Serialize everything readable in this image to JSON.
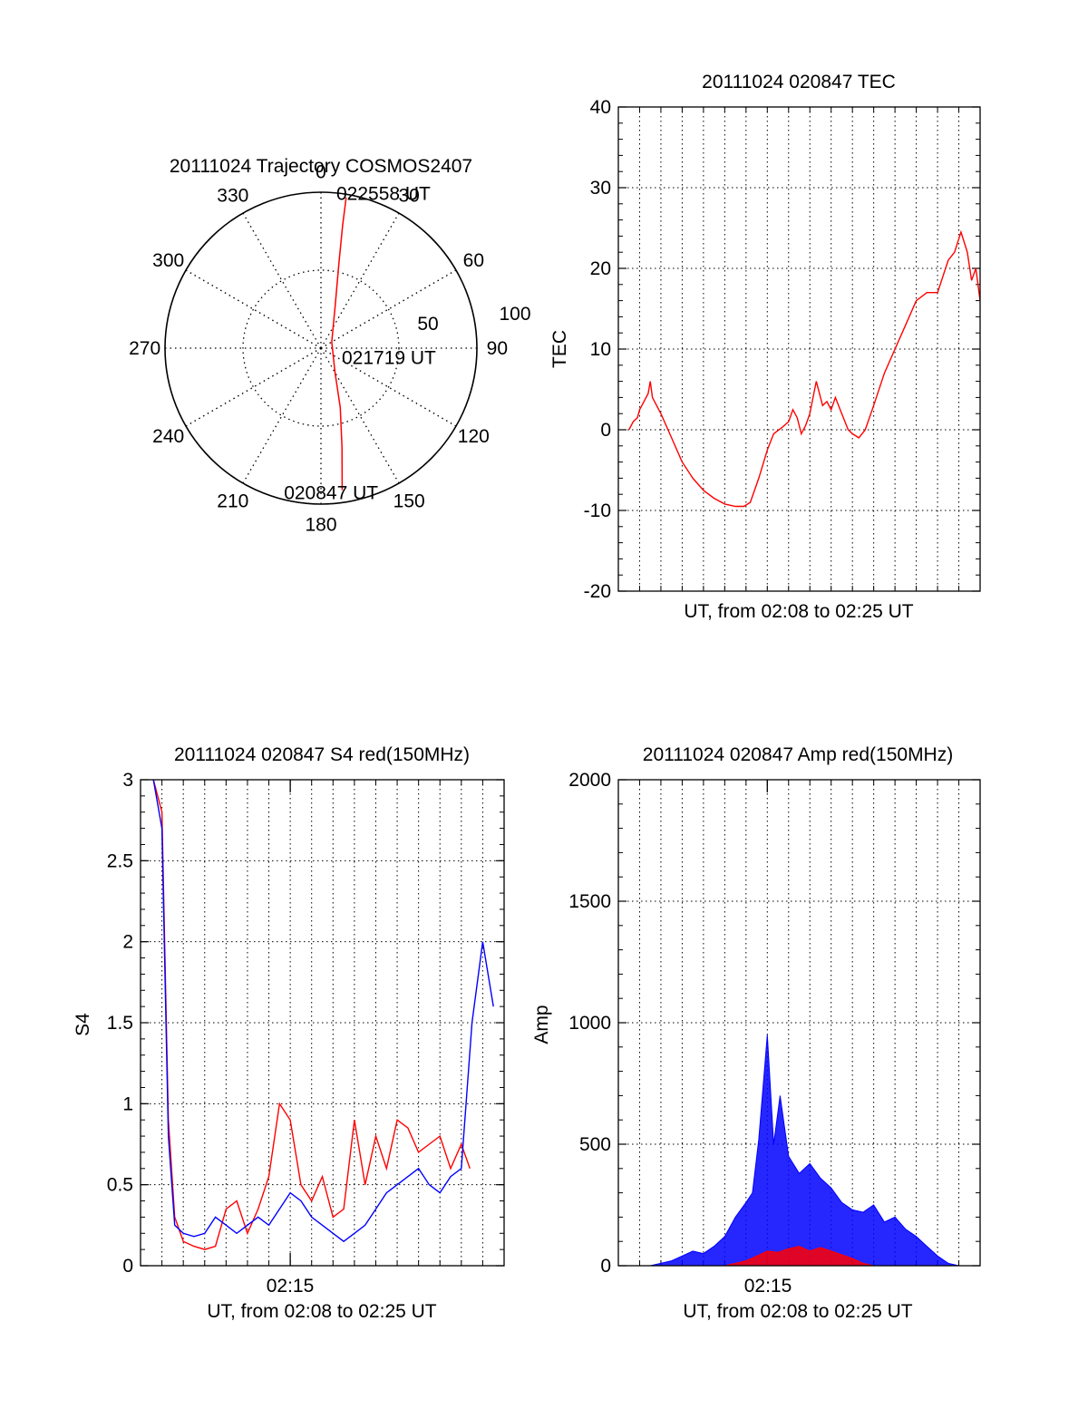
{
  "colors": {
    "red": "#ff0000",
    "blue": "#0000ff",
    "axis": "#000000",
    "grid": "#000000"
  },
  "chart_data": [
    {
      "id": "trajectory",
      "type": "polar",
      "title": "20111024 Trajectory COSMOS2407",
      "angle_labels": [
        "0",
        "30",
        "60",
        "90",
        "120",
        "150",
        "180",
        "210",
        "240",
        "270",
        "300",
        "330"
      ],
      "radius_labels": [
        "50",
        "100"
      ],
      "rlim": [
        0,
        100
      ],
      "grid": true,
      "track": {
        "series": "red",
        "points": [
          {
            "az": 9.5,
            "r": 98
          },
          {
            "az": 10,
            "r": 80
          },
          {
            "az": 12,
            "r": 55
          },
          {
            "az": 18,
            "r": 30
          },
          {
            "az": 60,
            "r": 8
          },
          {
            "az": 150,
            "r": 18
          },
          {
            "az": 162,
            "r": 40
          },
          {
            "az": 168,
            "r": 65
          },
          {
            "az": 171.5,
            "r": 92
          }
        ]
      },
      "annotations": [
        {
          "text": "022558 UT",
          "az": 22,
          "r": 107
        },
        {
          "text": "021719 UT",
          "az": 98,
          "r": 44
        },
        {
          "text": "020847 UT",
          "az": 176,
          "r": 93
        }
      ]
    },
    {
      "id": "tec",
      "type": "line",
      "title": "20111024 020847 TEC",
      "xlabel": "UT, from 02:08 to 02:25 UT",
      "ylabel": "TEC",
      "xlim": [
        0,
        17
      ],
      "ylim": [
        -20,
        40
      ],
      "yticks": [
        "-20",
        "-10",
        "0",
        "10",
        "20",
        "30",
        "40"
      ],
      "grid": true,
      "series": [
        {
          "color": "red",
          "x": [
            0.5,
            0.7,
            0.9,
            1.0,
            1.2,
            1.4,
            1.5,
            1.6,
            2.0,
            2.5,
            3.0,
            3.5,
            4.0,
            4.5,
            5.0,
            5.5,
            5.9,
            6.2,
            6.6,
            7.0,
            7.3,
            7.7,
            8.0,
            8.2,
            8.4,
            8.6,
            8.8,
            9.0,
            9.3,
            9.6,
            9.8,
            10.0,
            10.2,
            10.5,
            10.8,
            11.0,
            11.3,
            11.6,
            12.0,
            12.5,
            13.0,
            13.5,
            14.0,
            14.5,
            15.0,
            15.5,
            15.8,
            16.1,
            16.4,
            16.6,
            16.8,
            17.0
          ],
          "y": [
            0.0,
            1.0,
            1.5,
            2.5,
            3.5,
            4.5,
            6.0,
            4.0,
            2.0,
            -1.0,
            -4.0,
            -6.0,
            -7.5,
            -8.5,
            -9.2,
            -9.5,
            -9.5,
            -9.0,
            -6.0,
            -2.5,
            -0.5,
            0.3,
            1.0,
            2.5,
            1.5,
            -0.5,
            0.5,
            2.0,
            6.0,
            3.0,
            3.5,
            2.5,
            4.0,
            2.0,
            0.0,
            -0.5,
            -1.0,
            0.0,
            3.0,
            7.0,
            10.0,
            13.0,
            16.0,
            17.0,
            17.0,
            21.0,
            22.0,
            24.5,
            22.0,
            18.5,
            20.0,
            16.0
          ]
        }
      ]
    },
    {
      "id": "s4",
      "type": "line",
      "title": "20111024 020847 S4 red(150MHz)",
      "xlabel": "UT, from 02:08 to 02:25 UT",
      "ylabel": "S4",
      "xtick_label": "02:15",
      "xlim": [
        0,
        17
      ],
      "ylim": [
        0,
        3
      ],
      "yticks": [
        "0",
        "0.5",
        "1",
        "1.5",
        "2",
        "2.5",
        "3"
      ],
      "grid": true,
      "series": [
        {
          "color": "red",
          "x": [
            0.6,
            1.0,
            1.3,
            1.6,
            2.0,
            2.5,
            3.0,
            3.5,
            4.0,
            4.5,
            5.0,
            5.5,
            6.0,
            6.5,
            7.0,
            7.5,
            8.0,
            8.5,
            9.0,
            9.5,
            10.0,
            10.5,
            11.0,
            11.5,
            12.0,
            12.5,
            13.0,
            13.5,
            14.0,
            14.5,
            15.0,
            15.4
          ],
          "y": [
            3.0,
            2.8,
            0.9,
            0.3,
            0.15,
            0.12,
            0.1,
            0.12,
            0.35,
            0.4,
            0.2,
            0.35,
            0.55,
            1.0,
            0.9,
            0.5,
            0.4,
            0.55,
            0.3,
            0.35,
            0.9,
            0.5,
            0.8,
            0.6,
            0.9,
            0.85,
            0.7,
            0.75,
            0.8,
            0.6,
            0.75,
            0.6
          ]
        },
        {
          "color": "blue",
          "x": [
            0.6,
            1.0,
            1.3,
            1.6,
            2.0,
            2.5,
            3.0,
            3.5,
            4.0,
            4.5,
            5.0,
            5.5,
            6.0,
            6.5,
            7.0,
            7.5,
            8.0,
            8.5,
            9.0,
            9.5,
            10.0,
            10.5,
            11.0,
            11.5,
            12.0,
            12.5,
            13.0,
            13.5,
            14.0,
            14.5,
            15.0,
            15.5,
            16.0,
            16.5
          ],
          "y": [
            3.0,
            2.7,
            0.8,
            0.25,
            0.2,
            0.18,
            0.2,
            0.3,
            0.25,
            0.2,
            0.25,
            0.3,
            0.25,
            0.35,
            0.45,
            0.4,
            0.3,
            0.25,
            0.2,
            0.15,
            0.2,
            0.25,
            0.35,
            0.45,
            0.5,
            0.55,
            0.6,
            0.5,
            0.45,
            0.55,
            0.6,
            1.5,
            2.0,
            1.6
          ]
        }
      ]
    },
    {
      "id": "amp",
      "type": "line",
      "title": "20111024 020847 Amp red(150MHz)",
      "xlabel": "UT, from 02:08 to 02:25 UT",
      "ylabel": "Amp",
      "xtick_label": "02:15",
      "xlim": [
        0,
        17
      ],
      "ylim": [
        0,
        2000
      ],
      "yticks": [
        "0",
        "500",
        "1000",
        "1500",
        "2000"
      ],
      "grid": true,
      "series": [
        {
          "color": "blue",
          "x": [
            0.5,
            1.0,
            1.5,
            2.0,
            2.5,
            3.0,
            3.5,
            4.0,
            4.5,
            5.0,
            5.5,
            6.0,
            6.3,
            6.6,
            7.0,
            7.3,
            7.6,
            8.0,
            8.5,
            9.0,
            9.5,
            10.0,
            10.5,
            11.0,
            11.5,
            12.0,
            12.5,
            13.0,
            13.5,
            14.0,
            14.5,
            15.0,
            15.5,
            16.0,
            17.0
          ],
          "y": [
            0,
            0,
            0,
            10,
            20,
            40,
            60,
            50,
            80,
            120,
            200,
            260,
            300,
            520,
            950,
            500,
            700,
            450,
            380,
            420,
            360,
            320,
            260,
            230,
            220,
            250,
            180,
            200,
            150,
            120,
            80,
            40,
            10,
            0,
            0
          ],
          "envelope": true
        },
        {
          "color": "red",
          "x": [
            4.0,
            5.0,
            5.5,
            6.0,
            6.5,
            7.0,
            7.5,
            8.0,
            8.5,
            9.0,
            9.5,
            10.0,
            10.5,
            11.0,
            11.5,
            12.0
          ],
          "y": [
            0,
            0,
            10,
            20,
            40,
            60,
            55,
            70,
            80,
            60,
            75,
            60,
            45,
            30,
            10,
            0
          ],
          "envelope": true
        }
      ]
    }
  ]
}
